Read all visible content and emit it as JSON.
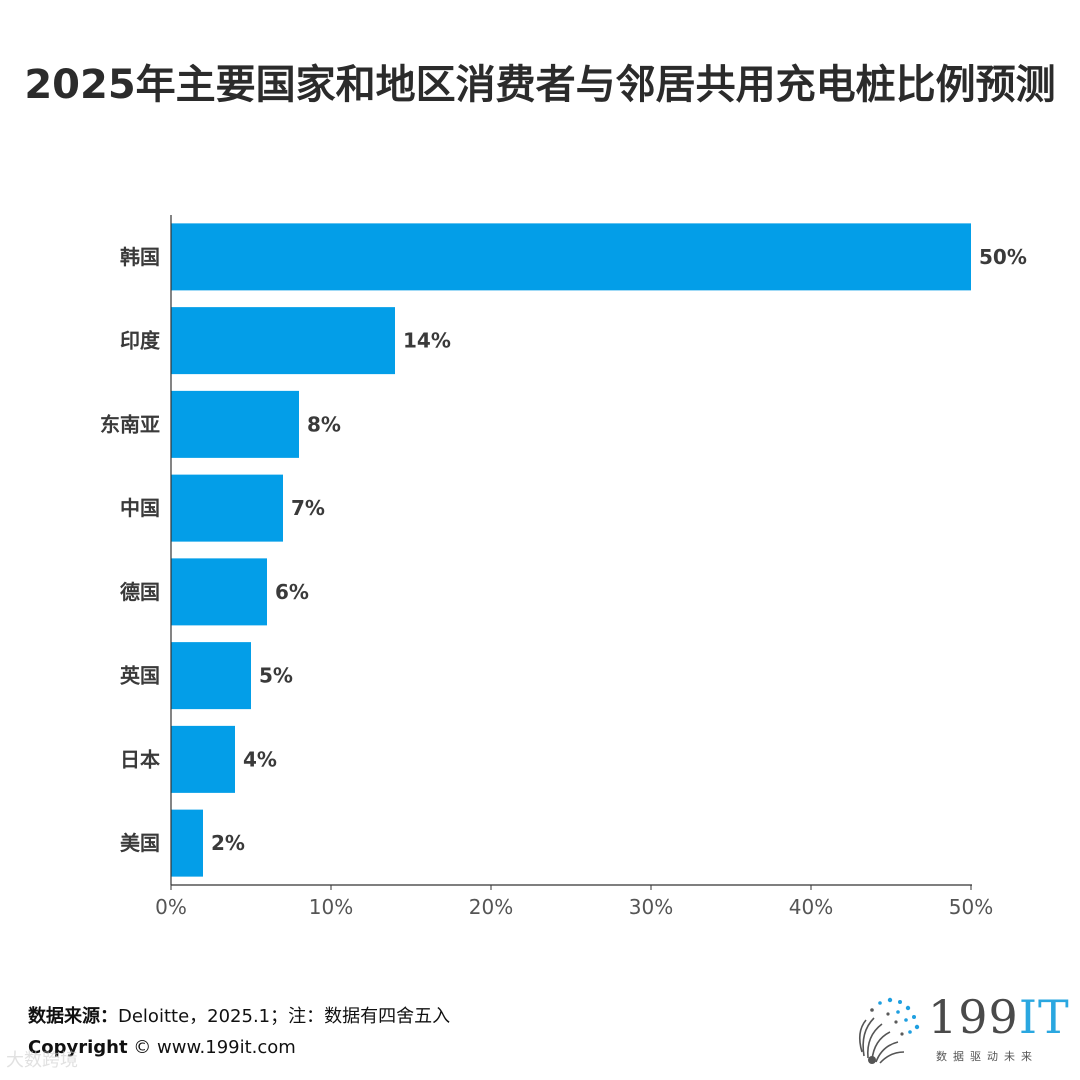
{
  "chart_data": {
    "type": "bar",
    "orientation": "horizontal",
    "title": "2025年主要国家和地区消费者与邻居共用充电桩比例预测",
    "categories": [
      "韩国",
      "印度",
      "东南亚",
      "中国",
      "德国",
      "英国",
      "日本",
      "美国"
    ],
    "values": [
      50,
      14,
      8,
      7,
      6,
      5,
      4,
      2
    ],
    "data_labels": [
      "50%",
      "14%",
      "8%",
      "7%",
      "6%",
      "5%",
      "4%",
      "2%"
    ],
    "xlim": [
      0,
      50
    ],
    "x_ticks": [
      0,
      10,
      20,
      30,
      40,
      50
    ],
    "x_tick_labels": [
      "0%",
      "10%",
      "20%",
      "30%",
      "40%",
      "50%"
    ],
    "xlabel": "",
    "ylabel": "",
    "grid": false,
    "legend": "none",
    "bar_color": "#039ee8"
  },
  "footer": {
    "source_label": "数据来源：",
    "source_text": "Deloitte，2025.1；注：数据有四舍五入",
    "copyright_label": "Copyright",
    "copyright_text": "© www.199it.com"
  },
  "logo": {
    "icon": "dandelion-dots-icon",
    "text_main": "199",
    "text_accent": "IT",
    "tagline": "数据驱动未来"
  },
  "watermark": {
    "text": "大数跨境"
  }
}
